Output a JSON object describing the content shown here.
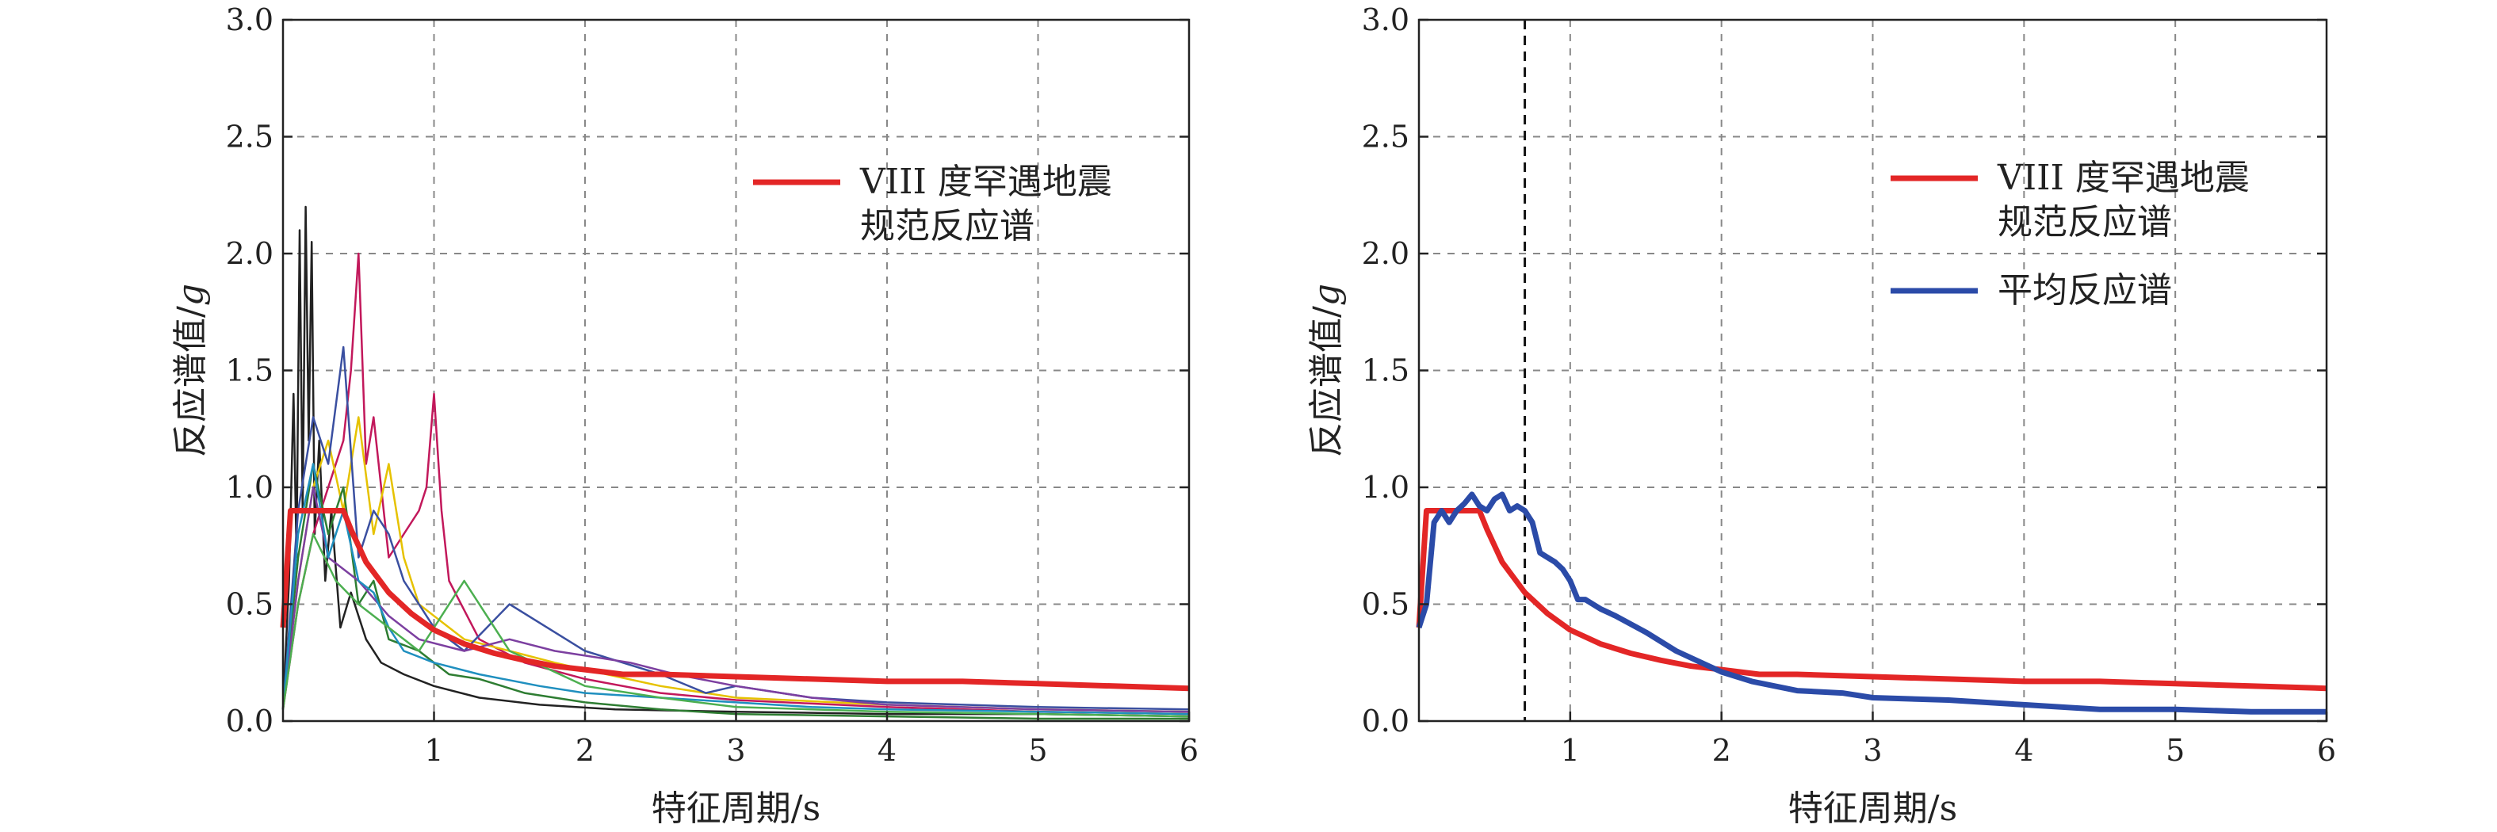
{
  "chart_data": [
    {
      "type": "line",
      "xlabel": "特征周期/s",
      "ylabel": "反应谱值/",
      "ylabel_unit": "g",
      "xlim": [
        0,
        6
      ],
      "ylim": [
        0,
        3.0
      ],
      "xticks": [
        "1",
        "2",
        "3",
        "4",
        "5",
        "6"
      ],
      "yticks": [
        "0.0",
        "0.5",
        "1.0",
        "1.5",
        "2.0",
        "2.5",
        "3.0"
      ],
      "grid": "dashed",
      "legend_position": "upper-right",
      "legend": [
        {
          "lines": [
            "VIII 度罕遇地震",
            "规范反应谱"
          ],
          "color": "#e32626"
        }
      ],
      "series": [
        {
          "name": "VIII 度罕遇地震规范反应谱",
          "color": "#e32626",
          "width": 7,
          "x": [
            0,
            0.05,
            0.1,
            0.2,
            0.3,
            0.4,
            0.45,
            0.55,
            0.7,
            0.85,
            1.0,
            1.2,
            1.4,
            1.6,
            1.8,
            2.0,
            2.25,
            2.5,
            3.0,
            3.5,
            4.0,
            4.5,
            5.0,
            5.5,
            6.0
          ],
          "y": [
            0.4,
            0.9,
            0.9,
            0.9,
            0.9,
            0.9,
            0.82,
            0.68,
            0.55,
            0.46,
            0.39,
            0.33,
            0.29,
            0.26,
            0.235,
            0.22,
            0.2,
            0.2,
            0.19,
            0.18,
            0.17,
            0.17,
            0.16,
            0.15,
            0.14
          ]
        },
        {
          "color": "#222222",
          "width": 2.5,
          "x": [
            0,
            0.04,
            0.07,
            0.09,
            0.11,
            0.13,
            0.15,
            0.17,
            0.19,
            0.21,
            0.24,
            0.28,
            0.32,
            0.38,
            0.45,
            0.55,
            0.65,
            0.8,
            1.0,
            1.3,
            1.7,
            2.2,
            3.0,
            4.0,
            5.0,
            6.0
          ],
          "y": [
            0.05,
            0.6,
            1.4,
            0.7,
            2.1,
            0.9,
            2.2,
            1.2,
            2.05,
            0.8,
            1.2,
            0.6,
            0.9,
            0.4,
            0.55,
            0.35,
            0.25,
            0.2,
            0.15,
            0.1,
            0.07,
            0.05,
            0.04,
            0.03,
            0.03,
            0.02
          ]
        },
        {
          "color": "#c2185b",
          "width": 2.5,
          "x": [
            0,
            0.1,
            0.2,
            0.3,
            0.4,
            0.45,
            0.5,
            0.55,
            0.6,
            0.7,
            0.8,
            0.9,
            0.95,
            1.0,
            1.05,
            1.1,
            1.3,
            1.6,
            2.0,
            2.5,
            3.0,
            4.0,
            5.0,
            6.0
          ],
          "y": [
            0.05,
            0.5,
            0.8,
            1.0,
            1.2,
            1.5,
            2.0,
            1.1,
            1.3,
            0.7,
            0.8,
            0.9,
            1.0,
            1.4,
            0.9,
            0.6,
            0.35,
            0.25,
            0.18,
            0.12,
            0.09,
            0.06,
            0.04,
            0.03
          ]
        },
        {
          "color": "#e6c200",
          "width": 2.5,
          "x": [
            0,
            0.1,
            0.2,
            0.3,
            0.4,
            0.5,
            0.6,
            0.7,
            0.8,
            0.9,
            1.0,
            1.2,
            1.5,
            1.8,
            2.0,
            2.5,
            3.0,
            4.0,
            5.0,
            6.0
          ],
          "y": [
            0.05,
            0.6,
            1.0,
            1.2,
            0.9,
            1.3,
            0.8,
            1.1,
            0.7,
            0.5,
            0.45,
            0.35,
            0.3,
            0.25,
            0.22,
            0.15,
            0.1,
            0.07,
            0.05,
            0.04
          ]
        },
        {
          "color": "#2e7d32",
          "width": 2.5,
          "x": [
            0,
            0.1,
            0.2,
            0.3,
            0.4,
            0.5,
            0.6,
            0.7,
            0.9,
            1.1,
            1.3,
            1.6,
            2.0,
            2.5,
            3.0,
            4.0,
            5.0,
            6.0
          ],
          "y": [
            0.05,
            0.7,
            1.1,
            0.8,
            1.0,
            0.5,
            0.6,
            0.35,
            0.3,
            0.2,
            0.18,
            0.12,
            0.08,
            0.05,
            0.03,
            0.02,
            0.01,
            0.01
          ]
        },
        {
          "color": "#3a4fa0",
          "width": 2.5,
          "x": [
            0,
            0.1,
            0.2,
            0.3,
            0.4,
            0.5,
            0.6,
            0.7,
            0.8,
            0.9,
            1.0,
            1.2,
            1.5,
            2.0,
            2.5,
            2.8,
            3.0,
            3.5,
            4.0,
            5.0,
            6.0
          ],
          "y": [
            0.05,
            0.9,
            1.3,
            1.1,
            1.6,
            0.7,
            0.9,
            0.8,
            0.6,
            0.5,
            0.4,
            0.3,
            0.5,
            0.3,
            0.2,
            0.12,
            0.15,
            0.1,
            0.08,
            0.06,
            0.05
          ]
        },
        {
          "color": "#7c3fa0",
          "width": 2.5,
          "x": [
            0,
            0.1,
            0.2,
            0.3,
            0.5,
            0.7,
            0.9,
            1.2,
            1.5,
            1.8,
            2.0,
            2.3,
            2.6,
            3.0,
            3.5,
            4.0,
            5.0,
            6.0
          ],
          "y": [
            0.05,
            0.6,
            1.0,
            0.7,
            0.6,
            0.45,
            0.35,
            0.3,
            0.35,
            0.3,
            0.28,
            0.25,
            0.2,
            0.15,
            0.1,
            0.07,
            0.05,
            0.04
          ]
        },
        {
          "color": "#1f8fbf",
          "width": 2.5,
          "x": [
            0,
            0.1,
            0.2,
            0.3,
            0.4,
            0.5,
            0.6,
            0.7,
            0.8,
            1.0,
            1.3,
            1.7,
            2.0,
            2.5,
            3.0,
            3.5,
            4.0,
            5.0,
            6.0
          ],
          "y": [
            0.05,
            0.8,
            1.1,
            0.7,
            0.9,
            0.6,
            0.55,
            0.4,
            0.3,
            0.25,
            0.2,
            0.15,
            0.12,
            0.1,
            0.08,
            0.06,
            0.05,
            0.04,
            0.03
          ]
        },
        {
          "color": "#4caf50",
          "width": 2.5,
          "x": [
            0,
            0.1,
            0.2,
            0.35,
            0.5,
            0.7,
            0.9,
            1.2,
            1.5,
            2.0,
            2.5,
            3.0,
            4.0,
            5.0,
            6.0
          ],
          "y": [
            0.05,
            0.5,
            0.8,
            0.6,
            0.5,
            0.4,
            0.3,
            0.6,
            0.3,
            0.15,
            0.1,
            0.06,
            0.04,
            0.03,
            0.02
          ]
        }
      ]
    },
    {
      "type": "line",
      "xlabel": "特征周期/s",
      "ylabel": "反应谱值/",
      "ylabel_unit": "g",
      "xlim": [
        0,
        6
      ],
      "ylim": [
        0,
        3.0
      ],
      "xticks": [
        "1",
        "2",
        "3",
        "4",
        "5",
        "6"
      ],
      "yticks": [
        "0.0",
        "0.5",
        "1.0",
        "1.5",
        "2.0",
        "2.5",
        "3.0"
      ],
      "grid": "dashed",
      "legend_position": "upper-right",
      "vline_x": 0.7,
      "legend": [
        {
          "lines": [
            "VIII 度罕遇地震",
            "规范反应谱"
          ],
          "color": "#e32626"
        },
        {
          "lines": [
            "平均反应谱"
          ],
          "color": "#2b4ba8"
        }
      ],
      "series": [
        {
          "name": "VIII 度罕遇地震规范反应谱",
          "color": "#e32626",
          "width": 7,
          "x": [
            0,
            0.05,
            0.1,
            0.2,
            0.3,
            0.4,
            0.45,
            0.55,
            0.7,
            0.85,
            1.0,
            1.2,
            1.4,
            1.6,
            1.8,
            2.0,
            2.25,
            2.5,
            3.0,
            3.5,
            4.0,
            4.5,
            5.0,
            5.5,
            6.0
          ],
          "y": [
            0.4,
            0.9,
            0.9,
            0.9,
            0.9,
            0.9,
            0.82,
            0.68,
            0.55,
            0.46,
            0.39,
            0.33,
            0.29,
            0.26,
            0.235,
            0.22,
            0.2,
            0.2,
            0.19,
            0.18,
            0.17,
            0.17,
            0.16,
            0.15,
            0.14
          ]
        },
        {
          "name": "平均反应谱",
          "color": "#2b4ba8",
          "width": 7,
          "x": [
            0,
            0.05,
            0.1,
            0.15,
            0.2,
            0.25,
            0.3,
            0.35,
            0.4,
            0.45,
            0.5,
            0.55,
            0.6,
            0.65,
            0.7,
            0.75,
            0.8,
            0.85,
            0.9,
            0.95,
            1.0,
            1.05,
            1.1,
            1.2,
            1.3,
            1.5,
            1.7,
            2.0,
            2.2,
            2.5,
            2.8,
            3.0,
            3.5,
            4.0,
            4.5,
            5.0,
            5.5,
            6.0
          ],
          "y": [
            0.4,
            0.5,
            0.85,
            0.9,
            0.85,
            0.9,
            0.93,
            0.97,
            0.92,
            0.9,
            0.95,
            0.97,
            0.9,
            0.92,
            0.9,
            0.85,
            0.72,
            0.7,
            0.68,
            0.65,
            0.6,
            0.52,
            0.52,
            0.48,
            0.45,
            0.38,
            0.3,
            0.21,
            0.17,
            0.13,
            0.12,
            0.1,
            0.09,
            0.07,
            0.05,
            0.05,
            0.04,
            0.04
          ]
        }
      ]
    }
  ]
}
